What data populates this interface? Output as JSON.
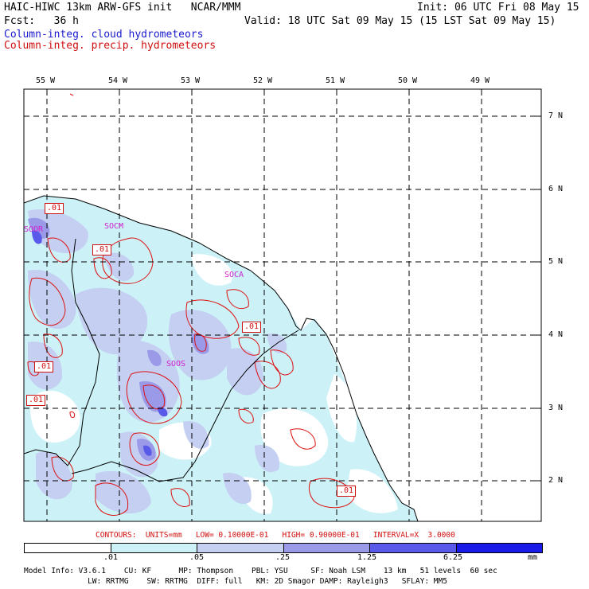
{
  "header": {
    "title_left": "HAIC-HIWC 13km ARW-GFS init   NCAR/MMM",
    "init": "Init: 06 UTC Fri 08 May 15",
    "fcst": "Fcst:   36 h",
    "valid": "Valid: 18 UTC Sat 09 May 15 (15 LST Sat 09 May 15)",
    "field1": "Column-integ. cloud hydrometeors",
    "field2": "Column-integ. precip. hydrometeors"
  },
  "map": {
    "lon_labels": [
      "55 W",
      "54 W",
      "53 W",
      "52 W",
      "51 W",
      "50 W",
      "49 W"
    ],
    "lat_labels": [
      "7 N",
      "6 N",
      "5 N",
      "4 N",
      "3 N",
      "2 N"
    ],
    "stations": [
      "SOCA",
      "SOCM",
      "SOOS",
      "SOOR"
    ],
    "contour_labels": [
      ".01",
      ".01",
      ".01",
      ".01",
      ".01",
      ".01"
    ]
  },
  "contour_info": "CONTOURS:  UNITS=mm   LOW= 0.10000E-01   HIGH= 0.90000E-01   INTERVAL=X  3.0000",
  "colorbar": {
    "ticks": [
      ".01",
      ".05",
      ".25",
      "1.25",
      "6.25"
    ],
    "unit": "mm",
    "colors": [
      "#ffffff",
      "#ccf2f8",
      "#c4cff2",
      "#9a9ae8",
      "#5a5aea",
      "#1a1ae8"
    ]
  },
  "footer": {
    "line1": "Model Info: V3.6.1    CU: KF      MP: Thompson    PBL: YSU     SF: Noah LSM    13 km   51 levels  60 sec",
    "line2": "              LW: RRTMG    SW: RRTMG  DIFF: full   KM: 2D Smagor DAMP: Rayleigh3   SFLAY: MM5"
  }
}
